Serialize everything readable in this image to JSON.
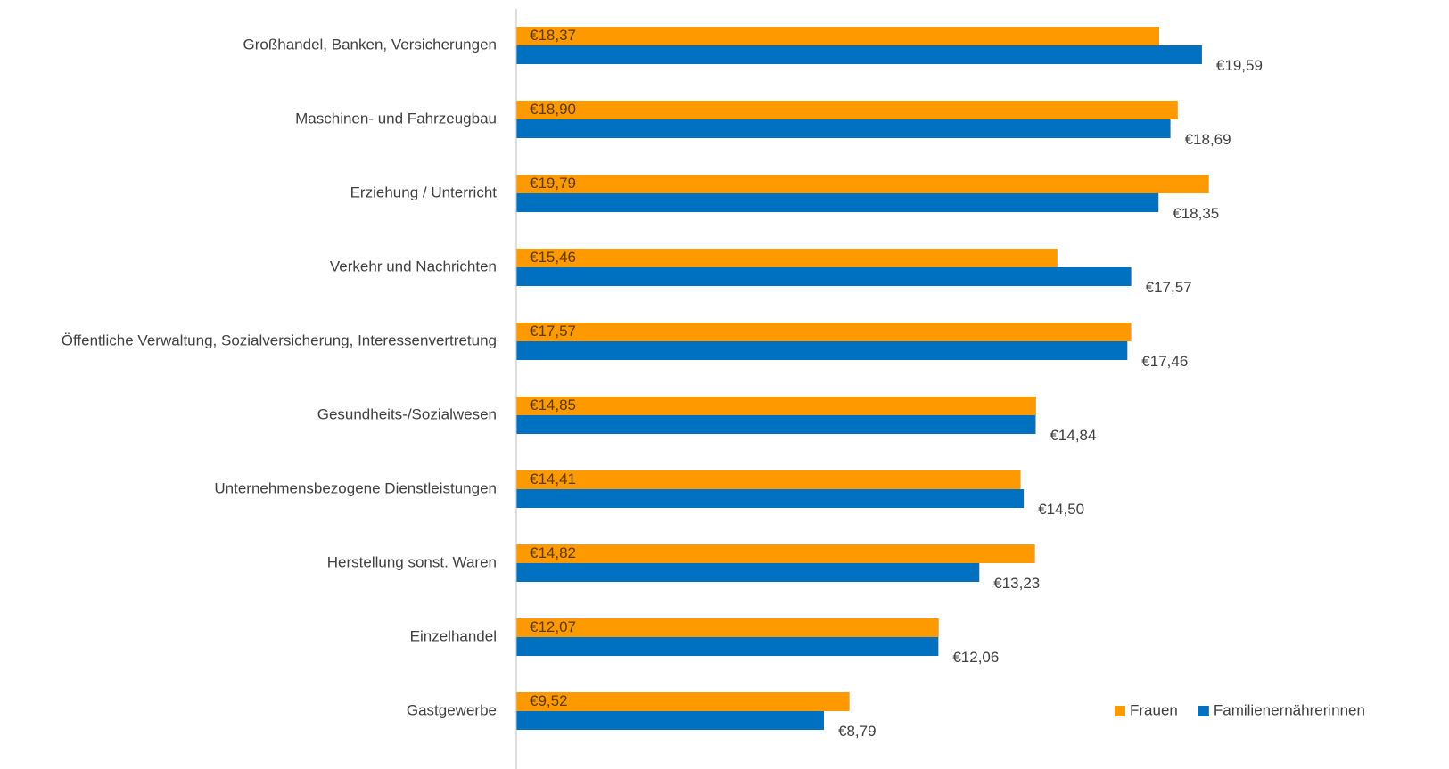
{
  "chart_data": {
    "type": "bar",
    "orientation": "horizontal",
    "categories": [
      "Großhandel, Banken, Versicherungen",
      "Maschinen- und Fahrzeugbau",
      "Erziehung / Unterricht",
      "Verkehr und Nachrichten",
      "Öffentliche Verwaltung, Sozialversicherung, Interessenvertretung",
      "Gesundheits-/Sozialwesen",
      "Unternehmensbezogene Dienstleistungen",
      "Herstellung sonst. Waren",
      "Einzelhandel",
      "Gastgewerbe"
    ],
    "series": [
      {
        "name": "Frauen",
        "color": "#ff9900",
        "values": [
          18.37,
          18.9,
          19.79,
          15.46,
          17.57,
          14.85,
          14.41,
          14.82,
          12.07,
          9.52
        ],
        "value_labels": [
          "€18,37",
          "€18,90",
          "€19,79",
          "€15,46",
          "€17,57",
          "€14,85",
          "€14,41",
          "€14,82",
          "€12,07",
          "€9,52"
        ]
      },
      {
        "name": "Familienernährerinnen",
        "color": "#0070c0",
        "values": [
          19.59,
          18.69,
          18.35,
          17.57,
          17.46,
          14.84,
          14.5,
          13.23,
          12.06,
          8.79
        ],
        "value_labels": [
          "€19,59",
          "€18,69",
          "€18,35",
          "€17,57",
          "€17,46",
          "€14,84",
          "€14,50",
          "€13,23",
          "€12,06",
          "€8,79"
        ]
      }
    ],
    "xlim": [
      0,
      20
    ],
    "legend": "bottom-right"
  }
}
